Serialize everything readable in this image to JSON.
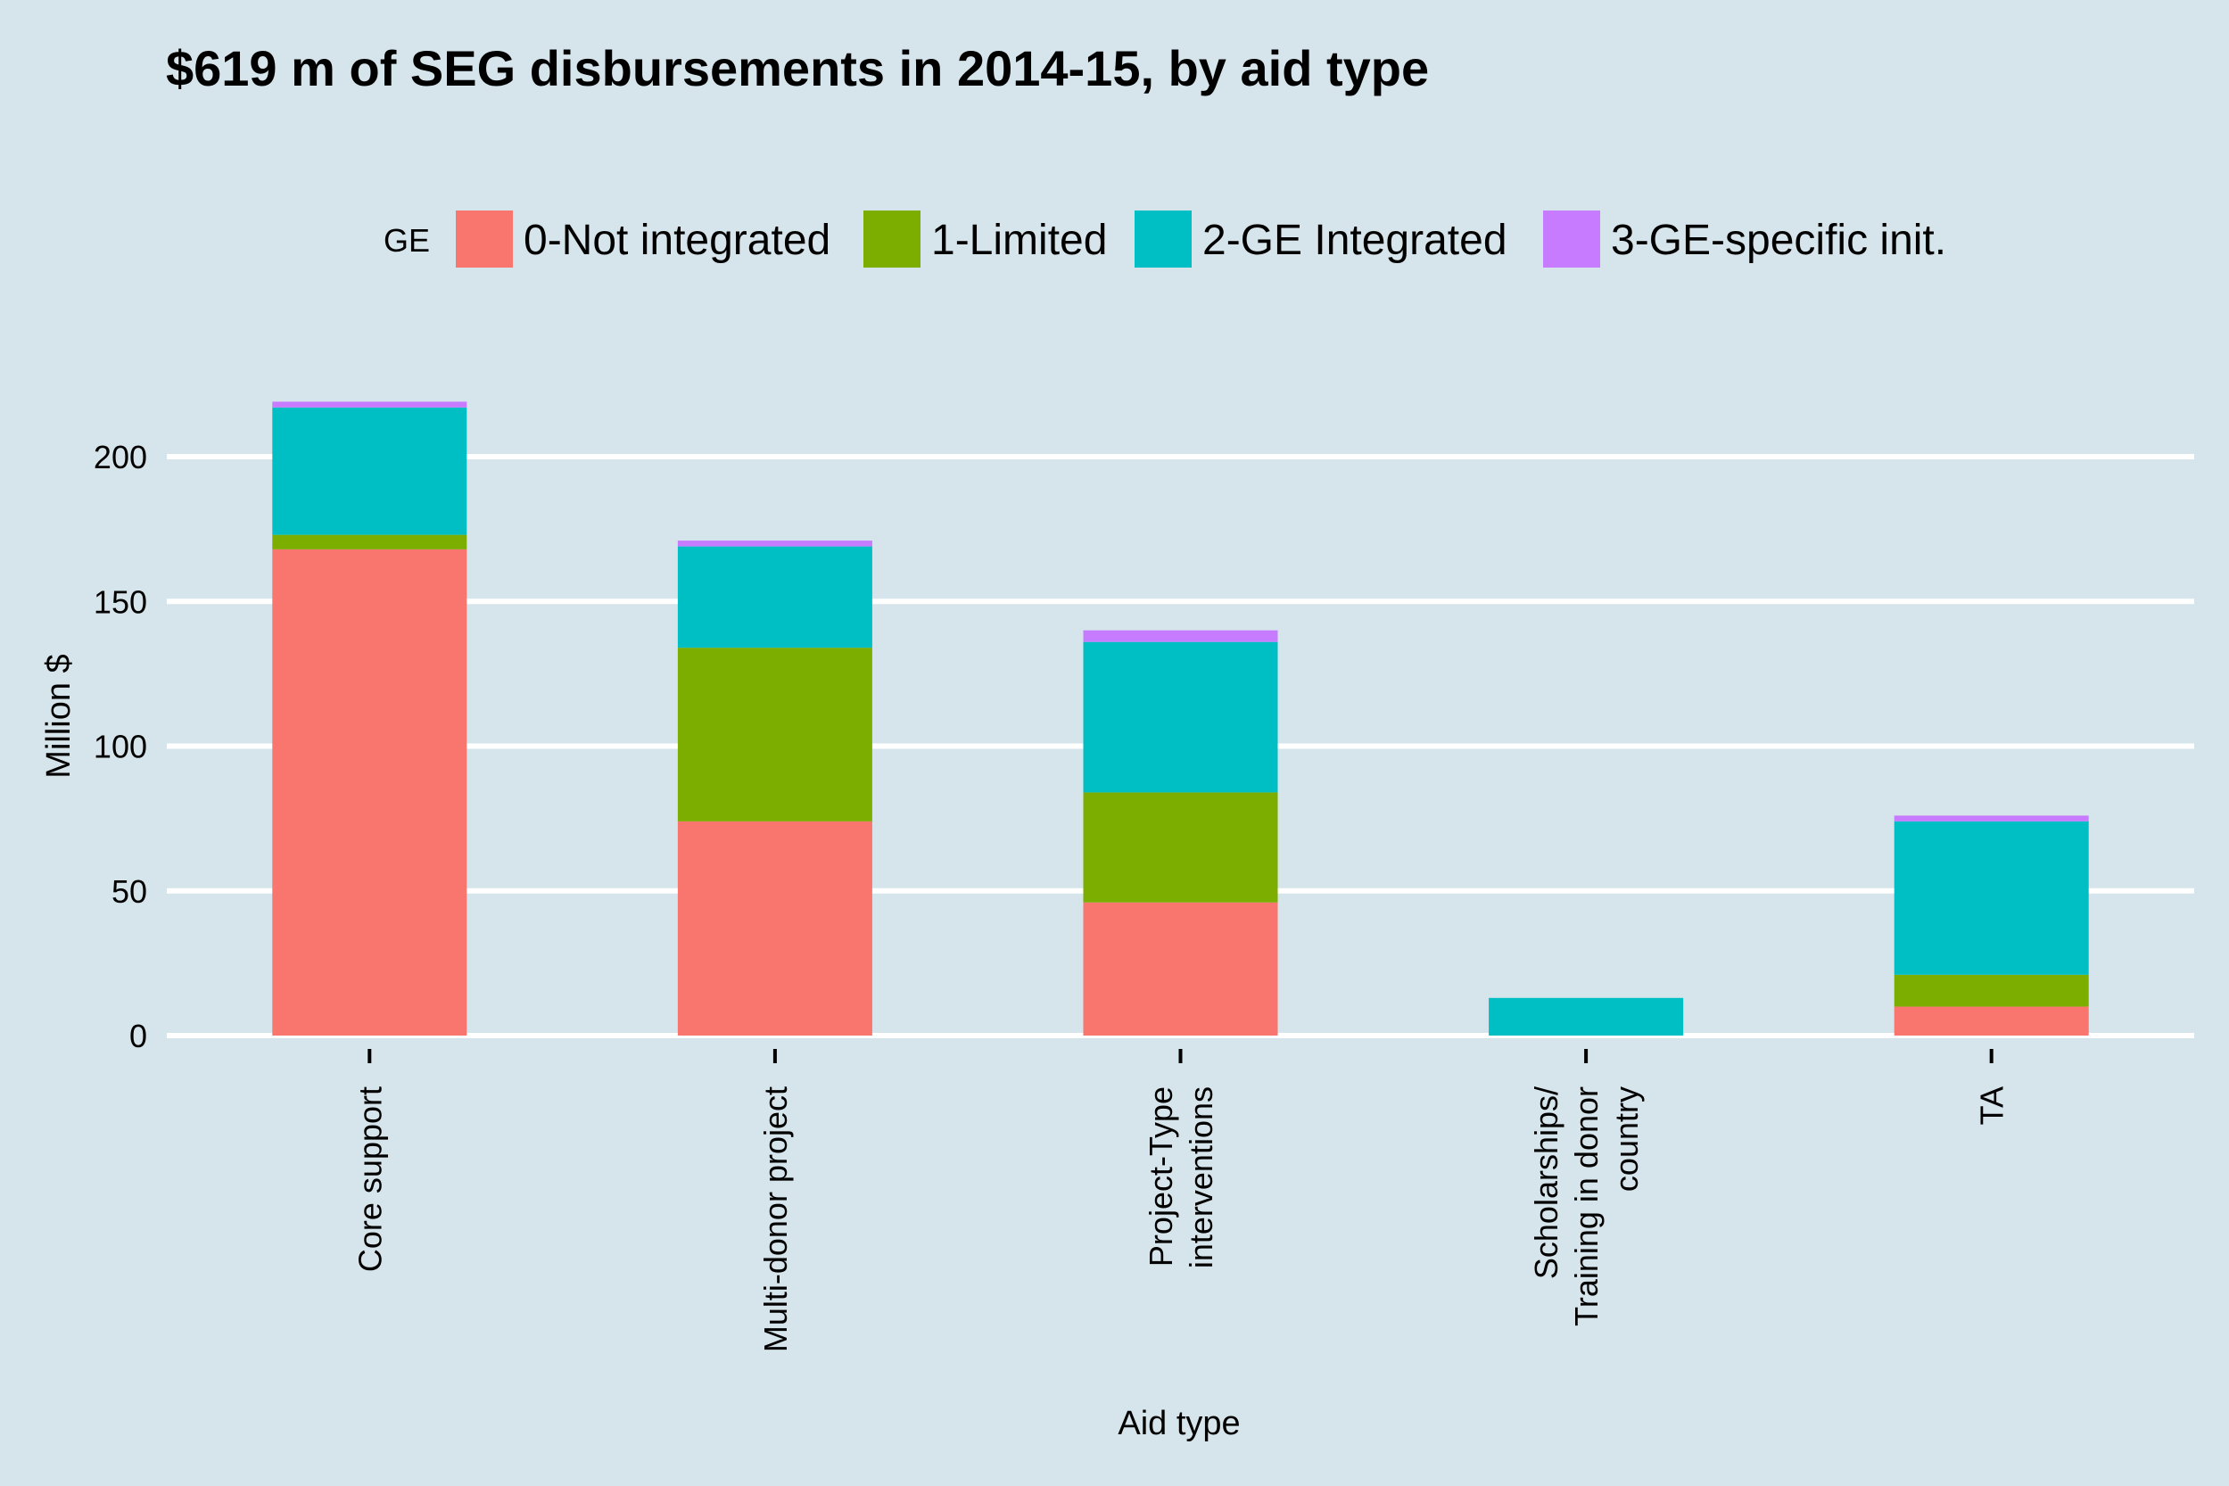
{
  "chart_data": {
    "type": "bar",
    "stacked": true,
    "title": "$619 m of SEG disbursements in 2014-15, by aid type",
    "xlabel": "Aid type",
    "ylabel": "Million $",
    "ylim": [
      0,
      220
    ],
    "yticks": [
      0,
      50,
      100,
      150,
      200
    ],
    "grid": "horizontal",
    "legend": {
      "title": "GE",
      "placement": "top"
    },
    "categories": [
      [
        "Core support"
      ],
      [
        "Multi-donor project"
      ],
      [
        "Project-Type",
        "interventions"
      ],
      [
        "Scholarships/",
        "Training in donor",
        "country"
      ],
      [
        "TA"
      ]
    ],
    "series": [
      {
        "name": "0-Not integrated",
        "color": "#F8766D",
        "values": [
          168,
          74,
          46,
          0,
          10
        ]
      },
      {
        "name": "1-Limited",
        "color": "#7CAE00",
        "values": [
          5,
          60,
          38,
          0,
          11
        ]
      },
      {
        "name": "2-GE Integrated",
        "color": "#00BFC4",
        "values": [
          44,
          35,
          52,
          13,
          53
        ]
      },
      {
        "name": "3-GE-specific init.",
        "color": "#C77CFF",
        "values": [
          2,
          2,
          4,
          0,
          2
        ]
      }
    ]
  }
}
